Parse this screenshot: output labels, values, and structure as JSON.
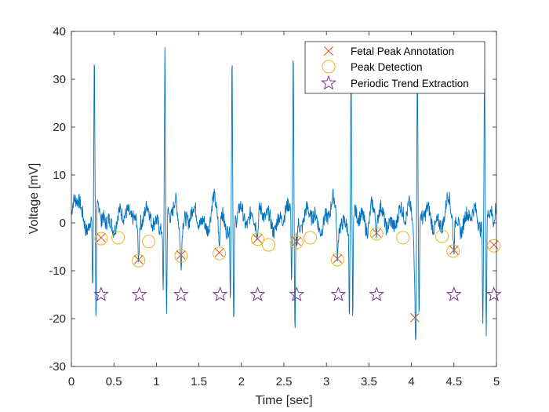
{
  "chart_data": {
    "type": "line",
    "xlabel": "Time [sec]",
    "ylabel": "Voltage [mV]",
    "xlim": [
      0,
      5
    ],
    "ylim": [
      -30,
      40
    ],
    "xticks": [
      0,
      0.5,
      1,
      1.5,
      2,
      2.5,
      3,
      3.5,
      4,
      4.5,
      5
    ],
    "xtick_labels": [
      "0",
      "0.5",
      "1",
      "1.5",
      "2",
      "2.5",
      "3",
      "3.5",
      "4",
      "4.5",
      "5"
    ],
    "yticks": [
      -30,
      -20,
      -10,
      0,
      10,
      20,
      30,
      40
    ],
    "ytick_labels": [
      "-30",
      "-20",
      "-10",
      "0",
      "10",
      "20",
      "30",
      "40"
    ],
    "grid": false,
    "legend_position": "top-right",
    "colors": {
      "signal": "#0072BD",
      "fetal": "#D95319",
      "detection": "#EDB120",
      "trend": "#7E2F8E",
      "axis": "#262626"
    },
    "signal": {
      "name": "ECG signal",
      "maternal_peaks": [
        {
          "t": 0.27,
          "pre_trough": -14.5,
          "peak": 34.3,
          "post_trough": -23.5
        },
        {
          "t": 1.1,
          "pre_trough": -15.0,
          "peak": 34.0,
          "post_trough": -22.0
        },
        {
          "t": 1.89,
          "pre_trough": -15.5,
          "peak": 34.5,
          "post_trough": -22.5
        },
        {
          "t": 2.61,
          "pre_trough": -15.0,
          "peak": 34.5,
          "post_trough": -24.0
        },
        {
          "t": 3.29,
          "pre_trough": -20.5,
          "peak": 31.0,
          "post_trough": -22.5
        },
        {
          "t": 4.07,
          "pre_trough": -20.0,
          "peak": 33.0,
          "post_trough": -23.0
        },
        {
          "t": 4.86,
          "pre_trough": -20.5,
          "peak": 33.0,
          "post_trough": -24.0
        }
      ]
    },
    "series": [
      {
        "name": "Fetal Peak Annotation",
        "marker": "x",
        "x": [
          0.35,
          0.79,
          1.29,
          1.74,
          2.19,
          2.65,
          3.13,
          3.59,
          4.04,
          4.5,
          4.97
        ],
        "y": [
          -3.1,
          -7.7,
          -6.7,
          -6.2,
          -3.3,
          -3.9,
          -7.5,
          -2.1,
          -19.8,
          -5.7,
          -4.6
        ]
      },
      {
        "name": "Peak Detection",
        "marker": "o",
        "x": [
          0.35,
          0.55,
          0.79,
          0.91,
          1.29,
          1.74,
          2.19,
          2.32,
          2.65,
          2.81,
          3.13,
          3.59,
          3.9,
          4.36,
          4.49,
          4.97
        ],
        "y": [
          -3.3,
          -3.1,
          -7.9,
          -3.9,
          -6.9,
          -6.4,
          -3.4,
          -4.6,
          -4.1,
          -3.1,
          -7.7,
          -2.3,
          -3.1,
          -2.8,
          -5.9,
          -4.8
        ]
      },
      {
        "name": "Periodic Trend Extraction",
        "marker": "star",
        "x": [
          0.35,
          0.8,
          1.29,
          1.75,
          2.19,
          2.65,
          3.14,
          3.59,
          4.5,
          4.97
        ],
        "y": [
          -15,
          -15,
          -15,
          -15,
          -15,
          -15,
          -15,
          -15,
          -15,
          -15
        ]
      }
    ],
    "legend": [
      "Fetal Peak Annotation",
      "Peak Detection",
      "Periodic Trend Extraction"
    ]
  }
}
